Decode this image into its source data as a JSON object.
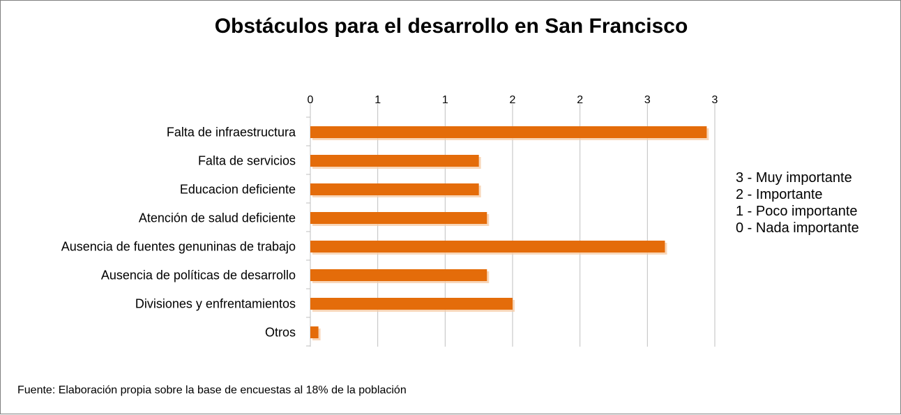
{
  "chart_data": {
    "type": "bar",
    "orientation": "horizontal",
    "title": "Obstáculos para el desarrollo en San Francisco",
    "xlabel": "",
    "ylabel": "",
    "xlim": [
      0,
      3
    ],
    "x_tick_labels": [
      "0",
      "1",
      "1",
      "2",
      "2",
      "3",
      "3"
    ],
    "grid": "vertical",
    "categories": [
      "Falta de infraestructura",
      "Falta de servicios",
      "Educacion deficiente",
      "Atención de salud deficiente",
      "Ausencia de fuentes genuninas de trabajo",
      "Ausencia de políticas de desarrollo",
      "Divisiones y enfrentamientos",
      "Otros"
    ],
    "values": [
      2.94,
      1.25,
      1.25,
      1.31,
      2.63,
      1.31,
      1.5,
      0.06
    ],
    "bar_color": "#E46C0A",
    "legend_text": [
      "3 - Muy importante",
      "2 - Importante",
      "1 - Poco importante",
      "0 - Nada importante"
    ],
    "legend_position": "right",
    "note": "Fuente: Elaboración propia sobre la base de encuestas al 18%  de la población"
  }
}
